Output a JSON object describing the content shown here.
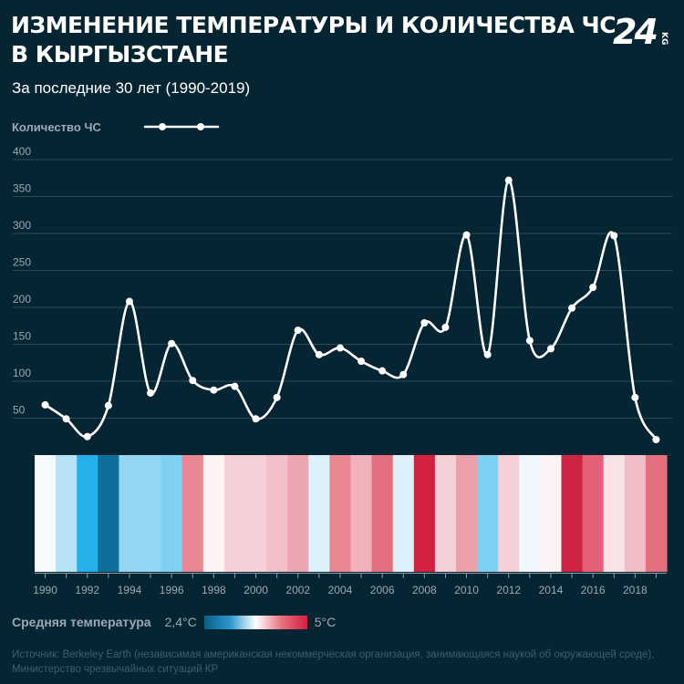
{
  "title_line1": "ИЗМЕНЕНИЕ ТЕМПЕРАТУРЫ И КОЛИЧЕСТВА ЧС",
  "title_line2": "В КЫРГЫЗСТАНЕ",
  "subtitle": "За последние 30 лет (1990-2019)",
  "logo_text": "24",
  "logo_suffix": "KG",
  "legend_series_label": "Количество ЧС",
  "temp_legend_label": "Средняя температура",
  "temp_min_label": "2,4°C",
  "temp_max_label": "5°C",
  "source_line1": "Источник: Berkeley Earth (независимая американская некоммерческая организация, занимающаяся наукой об окружающей среде),",
  "source_line2": "Министерство чрезвычайных ситуаций КР",
  "colors": {
    "background": "#062533",
    "line": "#ffffff",
    "gridline": "#2a4a57",
    "muted_text": "#9aa9b2",
    "source_text": "#3e5c69"
  },
  "chart_data": {
    "type": "line",
    "series": [
      {
        "name": "Количество ЧС",
        "x": [
          1990,
          1991,
          1992,
          1993,
          1994,
          1995,
          1996,
          1997,
          1998,
          1999,
          2000,
          2001,
          2002,
          2003,
          2004,
          2005,
          2006,
          2007,
          2008,
          2009,
          2010,
          2011,
          2012,
          2013,
          2014,
          2015,
          2016,
          2017,
          2018,
          2019
        ],
        "values": [
          68,
          49,
          25,
          67,
          208,
          84,
          151,
          101,
          88,
          93,
          49,
          78,
          169,
          136,
          145,
          127,
          114,
          109,
          179,
          173,
          298,
          136,
          372,
          155,
          144,
          199,
          227,
          297,
          78,
          21
        ]
      }
    ],
    "yticks": [
      50,
      100,
      150,
      200,
      250,
      300,
      350,
      400
    ],
    "ylim": [
      0,
      400
    ],
    "xtick_labels": [
      "1990",
      "1992",
      "1994",
      "1996",
      "1998",
      "2000",
      "2002",
      "2004",
      "2006",
      "2008",
      "2010",
      "2012",
      "2014",
      "2016",
      "2018"
    ],
    "grid": true,
    "legend_placement": "top-left",
    "temperature_stripes": {
      "years": [
        1990,
        1991,
        1992,
        1993,
        1994,
        1995,
        1996,
        1997,
        1998,
        1999,
        2000,
        2001,
        2002,
        2003,
        2004,
        2005,
        2006,
        2007,
        2008,
        2009,
        2010,
        2011,
        2012,
        2013,
        2014,
        2015,
        2016,
        2017,
        2018,
        2019
      ],
      "colors": [
        "#f4fafe",
        "#b5e2f6",
        "#25b0ea",
        "#0e6f9a",
        "#93d7f5",
        "#93d7f5",
        "#7ed1f3",
        "#e88692",
        "#fdf2f4",
        "#f6d0d7",
        "#f6d0d7",
        "#f1c0c9",
        "#eda5b0",
        "#ddf1fb",
        "#e88692",
        "#efb1bb",
        "#e4707f",
        "#ddf1fb",
        "#d22141",
        "#f6d0d7",
        "#eba0ab",
        "#7ed1f3",
        "#f6d0d7",
        "#edf7fd",
        "#fdf2f4",
        "#cd2444",
        "#e36078",
        "#f9e2e6",
        "#f2bcc5",
        "#e4707f"
      ]
    }
  }
}
